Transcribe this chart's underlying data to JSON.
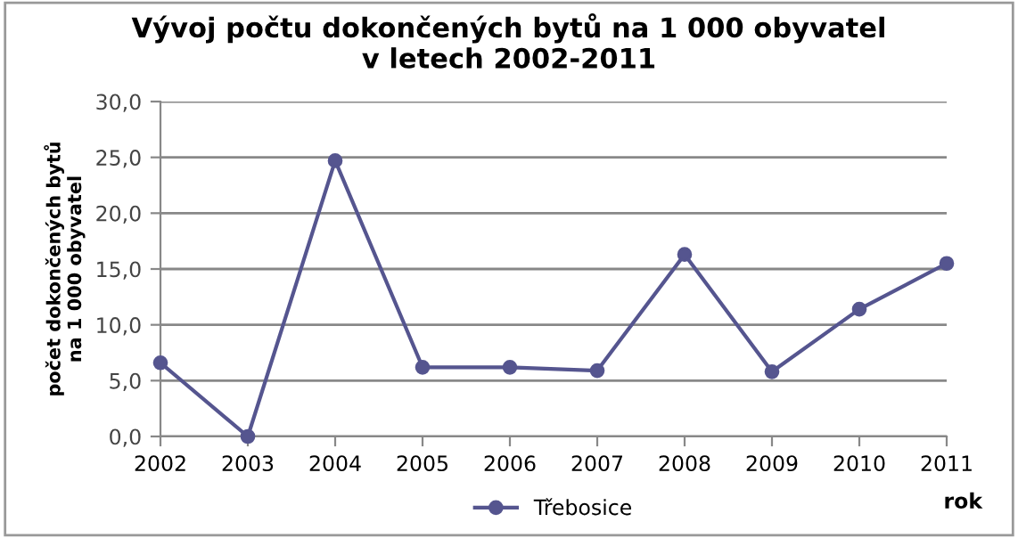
{
  "chart_data": {
    "type": "line",
    "title": "Vývoj počtu dokončených bytů na 1 000 obyvatel\nv letech 2002-2011",
    "xlabel": "rok",
    "ylabel": "počet dokončených bytů\nna 1 000 obyvatel",
    "categories": [
      "2002",
      "2003",
      "2004",
      "2005",
      "2006",
      "2007",
      "2008",
      "2009",
      "2010",
      "2011"
    ],
    "series": [
      {
        "name": "Třebosice",
        "color": "#55558f",
        "values": [
          6.6,
          0.0,
          24.7,
          6.2,
          6.2,
          5.9,
          16.3,
          5.8,
          11.4,
          15.5
        ]
      }
    ],
    "ylim": [
      0,
      30
    ],
    "yticks": [
      {
        "value": 0,
        "label": "0,0"
      },
      {
        "value": 5,
        "label": "5,0"
      },
      {
        "value": 10,
        "label": "10,0"
      },
      {
        "value": 15,
        "label": "15,0"
      },
      {
        "value": 20,
        "label": "20,0"
      },
      {
        "value": 25,
        "label": "25,0"
      },
      {
        "value": 30,
        "label": "30,0"
      }
    ],
    "grid": "y",
    "legend": "bottom",
    "marker": "circle",
    "line_style": "solid"
  }
}
